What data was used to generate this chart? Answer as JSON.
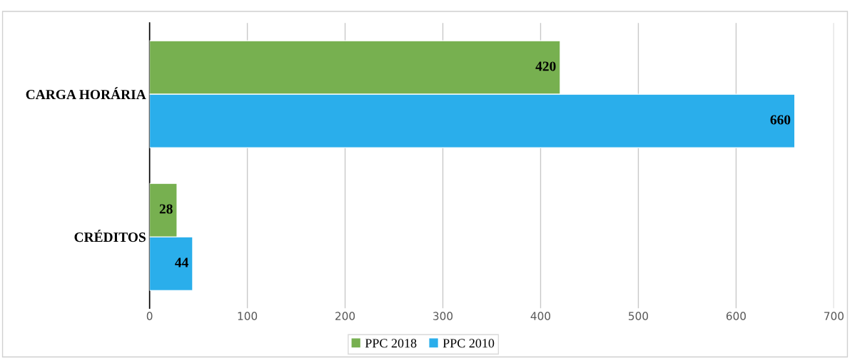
{
  "chart_data": {
    "type": "bar",
    "orientation": "horizontal",
    "categories": [
      "CARGA HORÁRIA",
      "CRÉDITOS"
    ],
    "series": [
      {
        "name": "PPC 2018",
        "color": "#77b050",
        "values": [
          420,
          28
        ]
      },
      {
        "name": "PPC 2010",
        "color": "#2aaeeb",
        "values": [
          660,
          44
        ]
      }
    ],
    "xlim": [
      0,
      700
    ],
    "xticks": [
      0,
      100,
      200,
      300,
      400,
      500,
      600,
      700
    ],
    "grid": "x",
    "legend": "bottom",
    "data_labels": true
  }
}
